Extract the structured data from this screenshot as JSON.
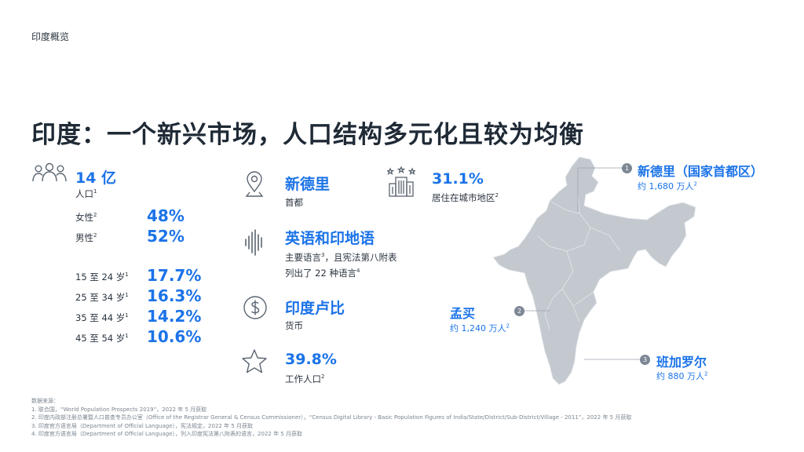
{
  "header": {
    "section_label": "印度概览"
  },
  "title": "印度：一个新兴市场，人口结构多元化且较为均衡",
  "population": {
    "value": "14 亿",
    "label": "人口",
    "label_fn": "1",
    "gender": [
      {
        "label": "女性",
        "fn": "2",
        "value": "48%"
      },
      {
        "label": "男性",
        "fn": "2",
        "value": "52%"
      }
    ],
    "age": [
      {
        "label": "15 至 24 岁",
        "fn": "1",
        "value": "17.7%"
      },
      {
        "label": "25 至 34 岁",
        "fn": "1",
        "value": "16.3%"
      },
      {
        "label": "35 至 44 岁",
        "fn": "1",
        "value": "14.2%"
      },
      {
        "label": "45 至 54 岁",
        "fn": "1",
        "value": "10.6%"
      }
    ]
  },
  "capital": {
    "title": "新德里",
    "sub": "首都",
    "icon": "location-pin-icon"
  },
  "language": {
    "title": "英语和印地语",
    "line1": "主要语言",
    "line1_fn": "3",
    "line1_rest": "，且宪法第八附表",
    "line2": "列出了 22 种语言",
    "line2_fn": "4",
    "icon": "sound-wave-icon"
  },
  "currency": {
    "title": "印度卢比",
    "sub": "货币",
    "icon": "dollar-coin-icon"
  },
  "workforce": {
    "value": "39.8%",
    "label": "工作人口",
    "fn": "2",
    "icon": "star-icon"
  },
  "urban": {
    "value": "31.1%",
    "label": "居住在城市地区",
    "fn": "2",
    "icon": "city-buildings-icon"
  },
  "cities": [
    {
      "marker": "1",
      "name": "新德里（国家首都区）",
      "pop": "约 1,680 万人",
      "fn": "2"
    },
    {
      "marker": "2",
      "name": "孟买",
      "pop": "约 1,240 万人",
      "fn": "2"
    },
    {
      "marker": "3",
      "name": "班加罗尔",
      "pop": "约 880 万人",
      "fn": "2"
    }
  ],
  "sources": {
    "heading": "数据来源：",
    "lines": [
      "1. 联合国，“World Population Prospects 2019”，2022 年 5 月获取",
      "2. 印度内政部注册总署暨人口普查专员办公室（Office of the Registrar General & Census Commissioner），“Census Digital Library - Basic Population Figures of India/State/District/Sub-District/Village - 2011”，2022 年 5 月获取",
      "3. 印度官方语言局（Department of Official Language），宪法规定，2022 年 5 月获取",
      "4. 印度官方语言局（Department of Official Language），列入印度宪法第八附表的语言，2022 年 5 月获取"
    ]
  },
  "colors": {
    "accent": "#1b73e8",
    "text": "#1f2a36",
    "map": "#c4c9d0",
    "icon": "#5a6470"
  }
}
